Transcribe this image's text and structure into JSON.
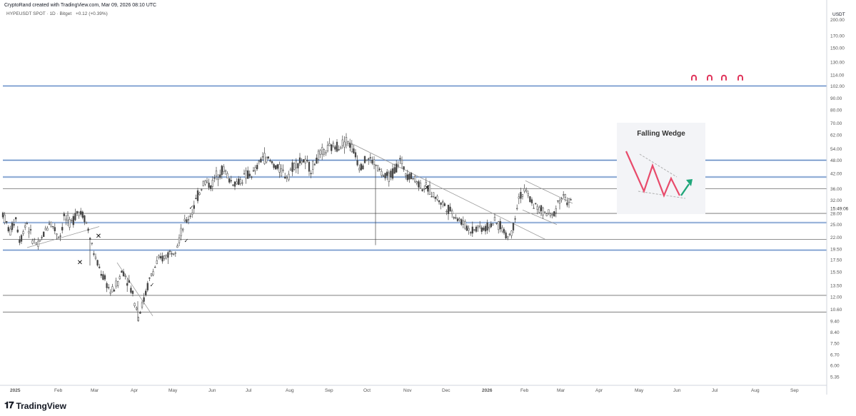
{
  "header": {
    "credit": "CryptoRand created with TradingView.com, Mar 09, 2026 08:10 UTC",
    "symbol_line": "HYPEUSDT SPOT · 1D · Bitget",
    "change": "+0.12 (+0.39%)"
  },
  "brand": {
    "name": "TradingView"
  },
  "inset": {
    "title": "Falling Wedge"
  },
  "colors": {
    "candle": "#444444",
    "hline_blue": "#8fb4e6",
    "hline_gray": "#6b6b6b",
    "trend": "#9a9a9a",
    "wedge_red": "#e84b6b",
    "wedge_green": "#1fa67a",
    "icons": "#e0345a"
  },
  "chart_data": {
    "type": "candlestick",
    "symbol": "HYPEUSDT",
    "interval": "1D",
    "exchange": "Bitget",
    "yscale": "log",
    "ylim": [
      4.9,
      230
    ],
    "price_unit": "USDT",
    "y_ticks": [
      5.35,
      6.0,
      6.7,
      7.5,
      8.4,
      9.4,
      10.6,
      12.0,
      13.5,
      15.5,
      17.5,
      19.5,
      22.0,
      25.0,
      28.0,
      32.0,
      36.0,
      42.0,
      48.0,
      54.0,
      62.0,
      70.0,
      80.0,
      90.0,
      102.0,
      114.0,
      130.0,
      150.0,
      170.0,
      200.0
    ],
    "y_tick_labels": [
      "5.35",
      "6.00",
      "6.70",
      "7.50",
      "8.40",
      "9.40",
      "10.60",
      "12.00",
      "13.50",
      "15.50",
      "17.50",
      "19.50",
      "22.00",
      "25.00",
      "28.00",
      "32.00",
      "36.00",
      "42.00",
      "48.00",
      "54.00",
      "62.00",
      "70.00",
      "80.00",
      "90.00",
      "102.00",
      "114.00",
      "130.00",
      "150.00",
      "170.00",
      "200.00"
    ],
    "x_ticks": [
      "2025",
      "Feb",
      "Mar",
      "Apr",
      "May",
      "Jun",
      "Jul",
      "Aug",
      "Sep",
      "Oct",
      "Nov",
      "Dec",
      "2026",
      "Feb",
      "Mar",
      "Apr",
      "May",
      "Jun",
      "Jul",
      "Aug",
      "Sep"
    ],
    "current_price": 30.9,
    "countdown": "15:49:06",
    "horizontal_levels": [
      {
        "price": 102.0,
        "style": "blue"
      },
      {
        "price": 48.0,
        "style": "blue"
      },
      {
        "price": 40.5,
        "style": "blue"
      },
      {
        "price": 36.0,
        "style": "gray"
      },
      {
        "price": 28.0,
        "style": "gray"
      },
      {
        "price": 25.5,
        "style": "blue"
      },
      {
        "price": 21.5,
        "style": "gray"
      },
      {
        "price": 19.3,
        "style": "blue"
      },
      {
        "price": 12.2,
        "style": "gray"
      },
      {
        "price": 10.3,
        "style": "gray"
      }
    ],
    "price_path": [
      [
        0,
        28
      ],
      [
        10,
        23
      ],
      [
        18,
        27
      ],
      [
        24,
        21
      ],
      [
        33,
        26
      ],
      [
        40,
        22
      ],
      [
        50,
        20
      ],
      [
        58,
        23
      ],
      [
        66,
        26
      ],
      [
        72,
        24
      ],
      [
        80,
        22
      ],
      [
        86,
        27
      ],
      [
        95,
        25
      ],
      [
        105,
        29
      ],
      [
        115,
        27
      ],
      [
        122,
        22
      ],
      [
        130,
        17.5
      ],
      [
        140,
        14.8
      ],
      [
        152,
        12.5
      ],
      [
        160,
        13.8
      ],
      [
        168,
        15.8
      ],
      [
        176,
        14
      ],
      [
        184,
        11.8
      ],
      [
        190,
        9.9
      ],
      [
        197,
        11.5
      ],
      [
        206,
        14.5
      ],
      [
        216,
        17
      ],
      [
        226,
        18
      ],
      [
        236,
        19
      ],
      [
        244,
        20.5
      ],
      [
        254,
        25
      ],
      [
        264,
        28
      ],
      [
        274,
        34
      ],
      [
        282,
        39
      ],
      [
        292,
        37
      ],
      [
        300,
        42
      ],
      [
        310,
        44
      ],
      [
        318,
        39
      ],
      [
        328,
        38
      ],
      [
        340,
        41
      ],
      [
        352,
        42
      ],
      [
        364,
        50
      ],
      [
        376,
        47
      ],
      [
        386,
        44
      ],
      [
        398,
        41
      ],
      [
        408,
        46
      ],
      [
        420,
        48
      ],
      [
        432,
        44
      ],
      [
        442,
        50
      ],
      [
        452,
        53
      ],
      [
        462,
        55
      ],
      [
        472,
        56
      ],
      [
        482,
        59
      ],
      [
        490,
        54
      ],
      [
        500,
        45
      ],
      [
        510,
        49
      ],
      [
        520,
        47
      ],
      [
        528,
        43
      ],
      [
        536,
        40
      ],
      [
        546,
        42
      ],
      [
        556,
        48
      ],
      [
        566,
        42
      ],
      [
        576,
        40
      ],
      [
        586,
        37
      ],
      [
        596,
        36
      ],
      [
        606,
        33
      ],
      [
        616,
        31
      ],
      [
        626,
        29
      ],
      [
        636,
        27
      ],
      [
        646,
        25
      ],
      [
        656,
        23.5
      ],
      [
        666,
        24.5
      ],
      [
        676,
        24
      ],
      [
        686,
        25.5
      ],
      [
        696,
        25
      ],
      [
        706,
        22
      ],
      [
        714,
        23.5
      ],
      [
        722,
        33
      ],
      [
        732,
        35
      ],
      [
        742,
        31
      ],
      [
        752,
        29
      ],
      [
        762,
        28
      ],
      [
        770,
        27
      ],
      [
        778,
        32
      ],
      [
        786,
        33
      ],
      [
        796,
        30.9
      ]
    ],
    "trendlines": [
      {
        "from": [
          34,
          19.8
        ],
        "to": [
          135,
          24.5
        ]
      },
      {
        "from": [
          488,
          57
        ],
        "to": [
          760,
          21.5
        ]
      },
      {
        "from": [
          160,
          17
        ],
        "to": [
          210,
          9.9
        ]
      },
      {
        "from": [
          732,
          39
        ],
        "to": [
          798,
          31
        ]
      },
      {
        "from": [
          728,
          29
        ],
        "to": [
          776,
          25
        ]
      }
    ],
    "annotations": [
      {
        "type": "cross",
        "bar": 134,
        "price": 22.2
      },
      {
        "type": "cross",
        "bar": 108,
        "price": 17.0
      },
      {
        "type": "check",
        "bar": 209,
        "price": 13.6
      },
      {
        "type": "check",
        "bar": 257,
        "price": 21.3
      },
      {
        "type": "check",
        "bar": 264,
        "price": 29.8
      },
      {
        "type": "cross",
        "bar": 594,
        "price": 36.3
      }
    ],
    "magnet_icons": [
      972,
      994,
      1014,
      1037
    ],
    "magnet_price": 111.0
  }
}
